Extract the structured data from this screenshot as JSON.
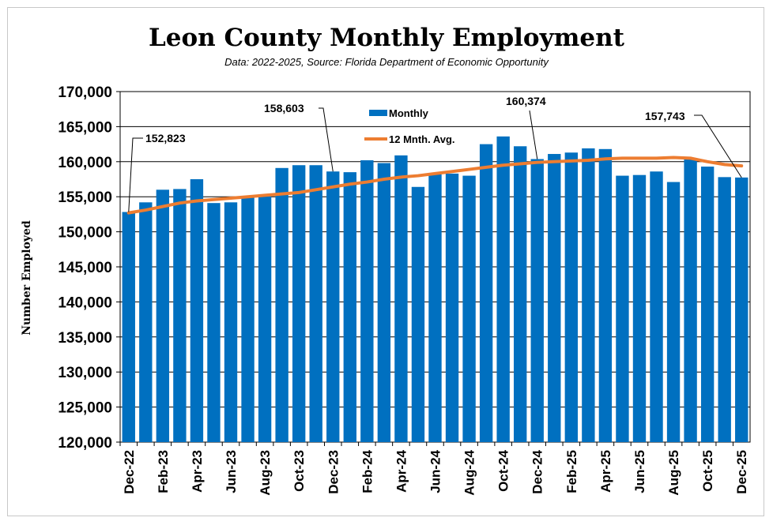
{
  "chart_data": {
    "type": "bar",
    "title": "Leon County Monthly Employment",
    "subtitle": "Data: 2022-2025, Source: Florida Department of Economic Opportunity",
    "xlabel": "",
    "ylabel": "Number Employed",
    "ylim": [
      120000,
      170000
    ],
    "y_ticks": [
      120000,
      125000,
      130000,
      135000,
      140000,
      145000,
      150000,
      155000,
      160000,
      165000,
      170000
    ],
    "y_tick_labels": [
      "120,000",
      "125,000",
      "130,000",
      "135,000",
      "140,000",
      "145,000",
      "150,000",
      "155,000",
      "160,000",
      "165,000",
      "170,000"
    ],
    "gridlines": true,
    "legend_position": "top-center",
    "categories": [
      "Dec-22",
      "Jan-23",
      "Feb-23",
      "Mar-23",
      "Apr-23",
      "May-23",
      "Jun-23",
      "Jul-23",
      "Aug-23",
      "Sep-23",
      "Oct-23",
      "Nov-23",
      "Dec-23",
      "Jan-24",
      "Feb-24",
      "Mar-24",
      "Apr-24",
      "May-24",
      "Jun-24",
      "Jul-24",
      "Aug-24",
      "Sep-24",
      "Oct-24",
      "Nov-24",
      "Dec-24",
      "Jan-25",
      "Feb-25",
      "Mar-25",
      "Apr-25",
      "May-25",
      "Jun-25",
      "Jul-25",
      "Aug-25",
      "Sep-25",
      "Oct-25",
      "Nov-25",
      "Dec-25"
    ],
    "x_tick_labels": [
      "Dec-22",
      "",
      "Feb-23",
      "",
      "Apr-23",
      "",
      "Jun-23",
      "",
      "Aug-23",
      "",
      "Oct-23",
      "",
      "Dec-23",
      "",
      "Feb-24",
      "",
      "Apr-24",
      "",
      "Jun-24",
      "",
      "Aug-24",
      "",
      "Oct-24",
      "",
      "Dec-24",
      "",
      "Feb-25",
      "",
      "Apr-25",
      "",
      "Jun-25",
      "",
      "Aug-25",
      "",
      "Oct-25",
      "",
      "Dec-25"
    ],
    "series": [
      {
        "name": "Monthly",
        "type": "bar",
        "color": "#0070c0",
        "values": [
          152823,
          154200,
          156000,
          156100,
          157500,
          154100,
          154200,
          155100,
          155100,
          159100,
          159500,
          159500,
          158603,
          158500,
          160200,
          159800,
          160900,
          156400,
          158200,
          158300,
          158000,
          162500,
          163600,
          162200,
          160374,
          161100,
          161300,
          161900,
          161800,
          158000,
          158100,
          158600,
          157100,
          160500,
          159300,
          157800,
          157743
        ]
      },
      {
        "name": "12 Mnth. Avg.",
        "type": "line",
        "color": "#ed7d31",
        "values": [
          152700,
          153100,
          153600,
          154100,
          154400,
          154600,
          154800,
          155000,
          155200,
          155400,
          155600,
          156000,
          156400,
          156800,
          157100,
          157500,
          157800,
          158000,
          158300,
          158600,
          158900,
          159200,
          159500,
          159700,
          159900,
          160000,
          160100,
          160200,
          160400,
          160500,
          160500,
          160500,
          160600,
          160500,
          160000,
          159600,
          159400
        ]
      }
    ],
    "annotations": [
      {
        "text": "152,823",
        "category": "Dec-22"
      },
      {
        "text": "158,603",
        "category": "Dec-23"
      },
      {
        "text": "160,374",
        "category": "Dec-24"
      },
      {
        "text": "157,743",
        "category": "Dec-25"
      }
    ]
  }
}
